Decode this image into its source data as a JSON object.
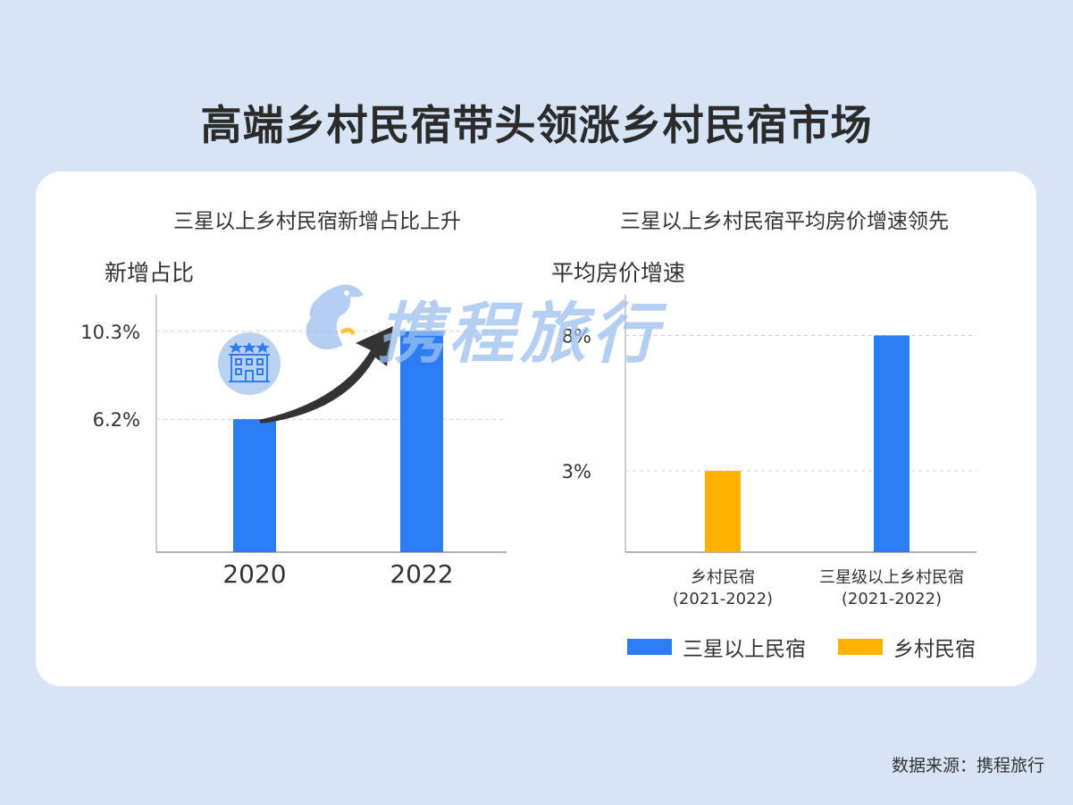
{
  "title": "高端乡村民宿带头领涨乡村民宿市场",
  "source": "数据来源：携程旅行",
  "watermark": "携程旅行",
  "colors": {
    "blue": "#2c7cf5",
    "orange": "#ffb300",
    "background": "#d6e4f5"
  },
  "icons": {
    "hotel": "hotel-building-icon",
    "trend": "trend-arrow-icon",
    "logo": "dolphin-logo-icon"
  },
  "chart_data": [
    {
      "type": "bar",
      "title": "三星以上乡村民宿新增占比上升",
      "ylabel": "新增占比",
      "categories": [
        "2020",
        "2022"
      ],
      "values": [
        6.2,
        10.3
      ],
      "value_labels": [
        "6.2%",
        "10.3%"
      ],
      "ylim": [
        0,
        12
      ],
      "grid": true,
      "bar_color": "#2c7cf5"
    },
    {
      "type": "bar",
      "title": "三星以上乡村民宿平均房价增速领先",
      "ylabel": "平均房价增速",
      "categories": [
        "乡村民宿\n(2021-2022)",
        "三星级以上乡村民宿\n(2021-2022)"
      ],
      "values": [
        3,
        8
      ],
      "value_labels": [
        "3%",
        "8%"
      ],
      "ylim": [
        0,
        9.5
      ],
      "grid": true,
      "series": [
        {
          "name": "三星以上民宿",
          "color": "#2c7cf5"
        },
        {
          "name": "乡村民宿",
          "color": "#ffb300"
        }
      ],
      "bar_colors": [
        "#ffb300",
        "#2c7cf5"
      ],
      "legend_position": "bottom-center"
    }
  ]
}
